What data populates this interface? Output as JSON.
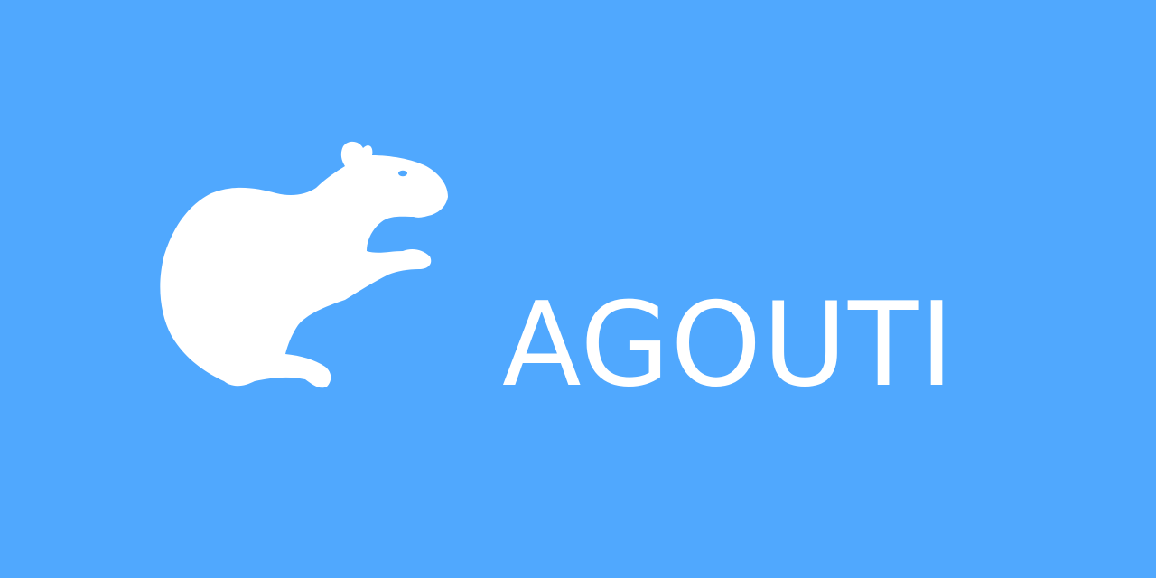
{
  "banner": {
    "background_color": "#50a8fe",
    "foreground_color": "#ffffff",
    "logo_icon": "agouti-silhouette-icon",
    "title": "AGOUTI"
  }
}
